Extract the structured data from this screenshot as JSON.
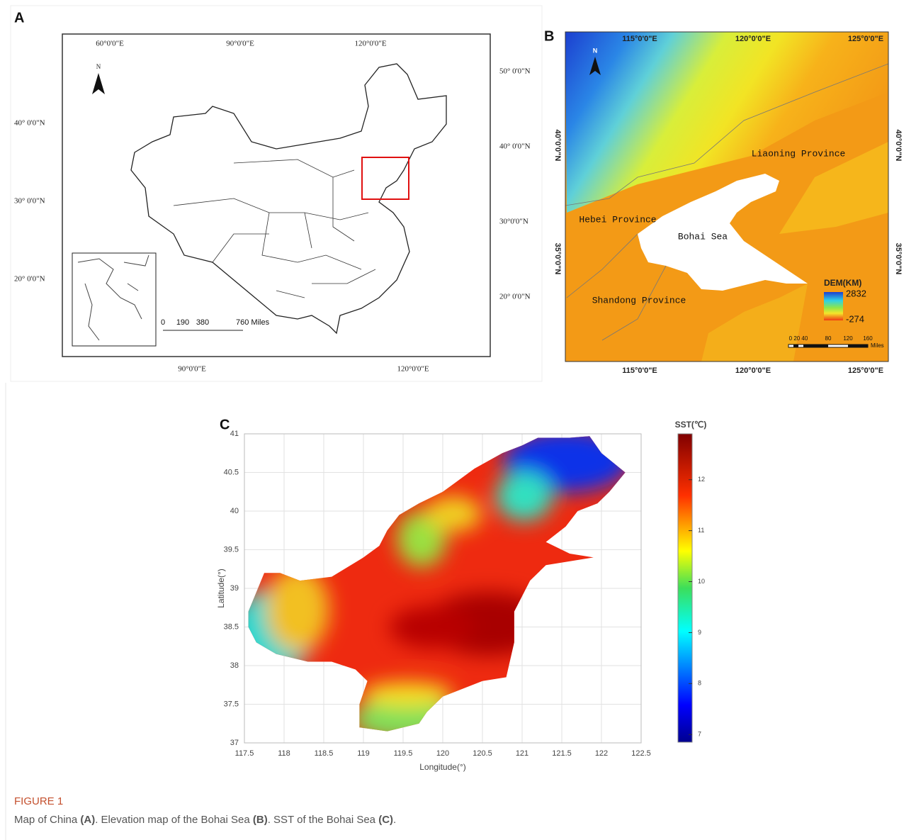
{
  "map_a": {
    "label": "A",
    "top_lon": [
      "60°0'0\"E",
      "90°0'0\"E",
      "120°0'0\"E"
    ],
    "right_lat": [
      "50° 0'0\"N",
      "40° 0'0\"N",
      "30°0'0\"N",
      "20° 0'0\"N"
    ],
    "left_lat": [
      "40° 0'0\"N",
      "30° 0'0\"N",
      "20° 0'0\"N"
    ],
    "bottom_lon": [
      "90°0'0\"E",
      "120°0'0\"E"
    ],
    "north": "N",
    "scale_ticks": [
      0,
      190,
      380
    ],
    "scale_end": "760 Miles"
  },
  "map_b": {
    "label": "B",
    "top_lon": [
      "115°0'0\"E",
      "120°0'0\"E",
      "125°0'0\"E"
    ],
    "bottom_lon": [
      "115°0'0\"E",
      "120°0'0\"E",
      "125°0'0\"E"
    ],
    "left_lat": [
      "40°0'0\"N",
      "35°0'0\"N"
    ],
    "right_lat": [
      "40°0'0\"N",
      "35°0'0\"N"
    ],
    "north": "N",
    "places": [
      "Liaoning Province",
      "Hebei Province",
      "Bohai Sea",
      "Shandong Province"
    ],
    "legend_title": "DEM(KM)",
    "legend_max": 2832,
    "legend_min": -274,
    "scale_labels": [
      "0 20 40",
      "80",
      "120",
      "160"
    ],
    "scale_unit": "Miles"
  },
  "chart_data": {
    "type": "heatmap",
    "label": "C",
    "xlabel": "Longitude(°)",
    "ylabel": "Latitude(°)",
    "xlim": [
      117.5,
      122.5
    ],
    "xticks": [
      117.5,
      118,
      118.5,
      119,
      119.5,
      120,
      120.5,
      121,
      121.5,
      122,
      122.5
    ],
    "ylim": [
      37,
      41
    ],
    "yticks": [
      37,
      37.5,
      38,
      38.5,
      39,
      39.5,
      40,
      40.5,
      41
    ],
    "grid": true,
    "colorbar_title": "SST(℃)",
    "clim": [
      6.85,
      12.9
    ],
    "cticks": [
      7,
      8,
      9,
      10,
      11,
      12
    ]
  },
  "caption": {
    "title": "FIGURE 1",
    "segments": [
      "Map of China ",
      "(A)",
      ". Elevation map of the Bohai Sea ",
      "(B)",
      ". SST of the Bohai Sea ",
      "(C)",
      "."
    ]
  }
}
